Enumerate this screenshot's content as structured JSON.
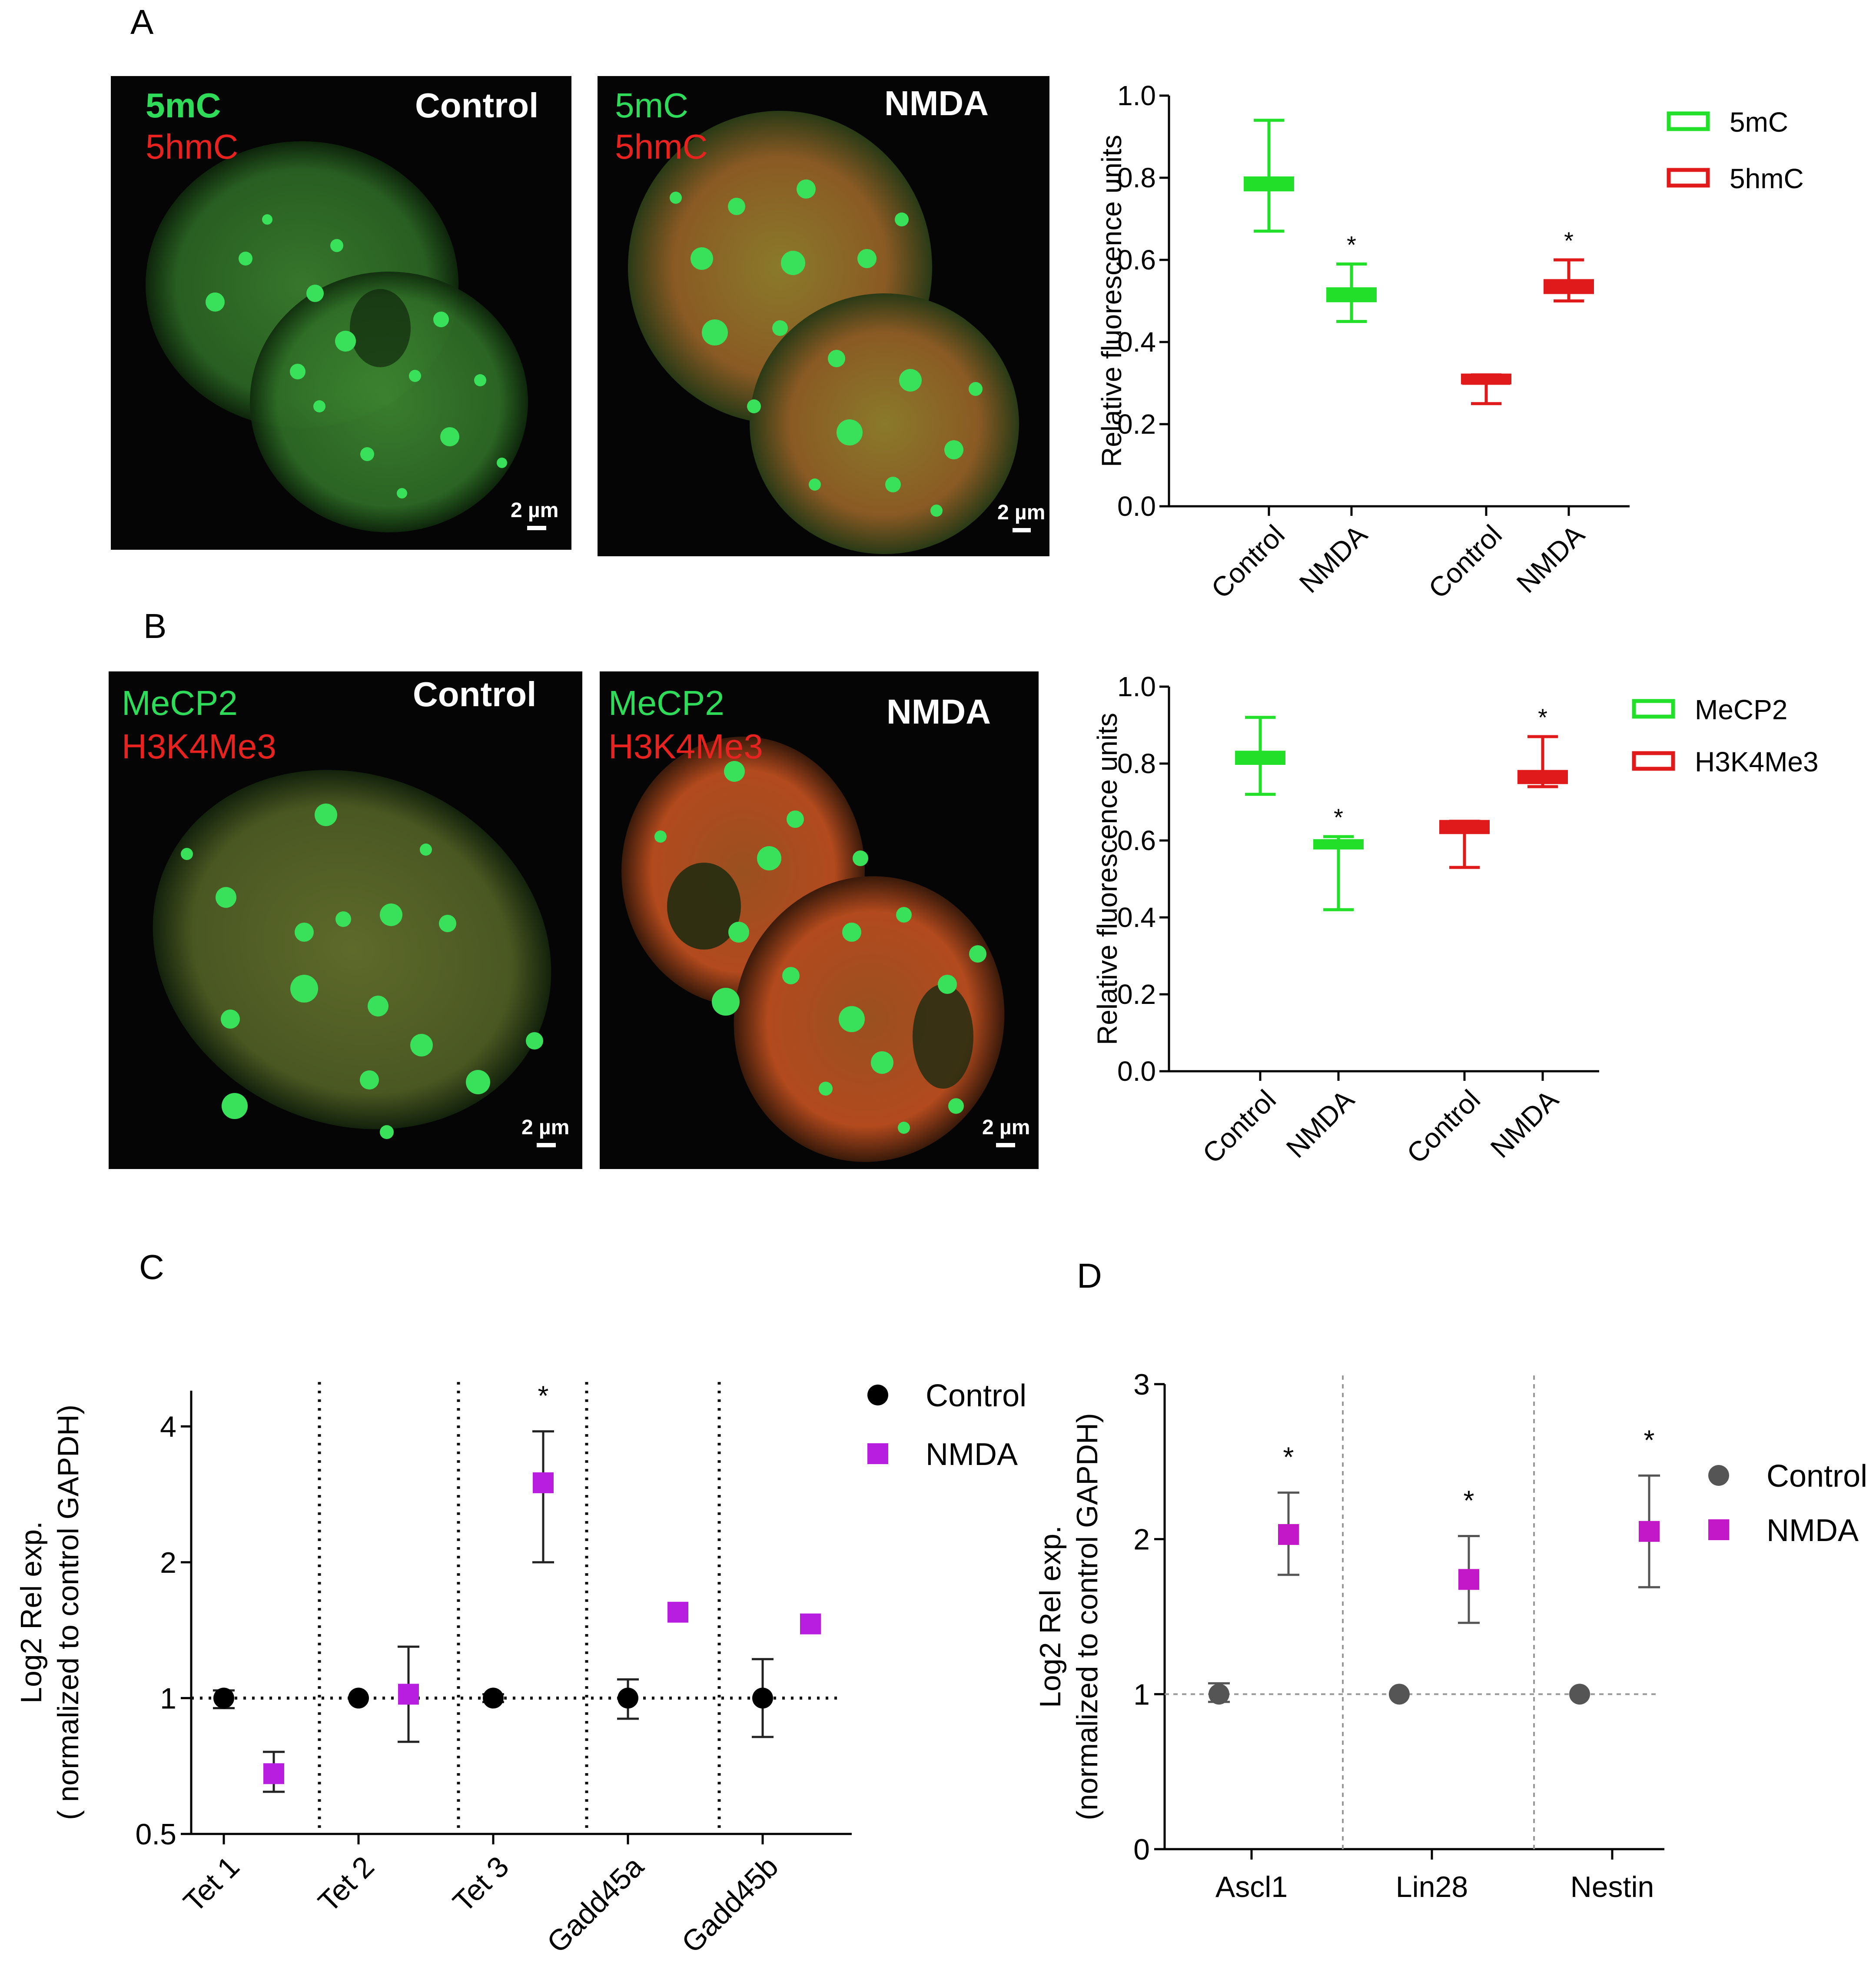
{
  "panels": {
    "A": "A",
    "B": "B",
    "C": "C",
    "D": "D"
  },
  "micrographs": [
    {
      "id": "A-control",
      "stain1": "5mC",
      "stain2": "5hmC",
      "stain1_color": "#2fdc5a",
      "stain2_color": "#e8221e",
      "condition": "Control",
      "scale_bar": "2 µm"
    },
    {
      "id": "A-nmda",
      "stain1": "5mC",
      "stain2": "5hmC",
      "stain1_color": "#2fdc5a",
      "stain2_color": "#e8221e",
      "condition": "NMDA",
      "scale_bar": "2 µm"
    },
    {
      "id": "B-control",
      "stain1": "MeCP2",
      "stain2": "H3K4Me3",
      "stain1_color": "#2fdc5a",
      "stain2_color": "#e8221e",
      "condition": "Control",
      "scale_bar": "2 µm"
    },
    {
      "id": "B-nmda",
      "stain1": "MeCP2",
      "stain2": "H3K4Me3",
      "stain1_color": "#2fdc5a",
      "stain2_color": "#e8221e",
      "condition": "NMDA",
      "scale_bar": "2 µm"
    }
  ],
  "chart_data": [
    {
      "id": "A-chart",
      "type": "box",
      "ylabel": "Relative fluorescence units",
      "ylim": [
        0,
        1.0
      ],
      "yticks": [
        "0.0",
        "0.2",
        "0.4",
        "0.6",
        "0.8",
        "1.0"
      ],
      "categories": [
        "Control",
        "NMDA",
        "Control",
        "NMDA"
      ],
      "legend": [
        {
          "name": "5mC",
          "color": "#22e02a"
        },
        {
          "name": "5hmC",
          "color": "#e01a1a"
        }
      ],
      "legend_position": "top-right",
      "series": [
        {
          "name": "5mC",
          "color": "#22e02a",
          "boxes": [
            {
              "category_index": 0,
              "min": 0.67,
              "q1": 0.77,
              "median": 0.78,
              "q3": 0.8,
              "max": 0.94,
              "significance": ""
            },
            {
              "category_index": 1,
              "min": 0.45,
              "q1": 0.5,
              "median": 0.51,
              "q3": 0.53,
              "max": 0.59,
              "significance": "*"
            }
          ]
        },
        {
          "name": "5hmC",
          "color": "#e01a1a",
          "boxes": [
            {
              "category_index": 2,
              "min": 0.25,
              "q1": 0.3,
              "median": 0.3,
              "q3": 0.32,
              "max": 0.32,
              "significance": ""
            },
            {
              "category_index": 3,
              "min": 0.5,
              "q1": 0.52,
              "median": 0.53,
              "q3": 0.55,
              "max": 0.6,
              "significance": "*"
            }
          ]
        }
      ]
    },
    {
      "id": "B-chart",
      "type": "box",
      "ylabel": "Relative fluorescence units",
      "ylim": [
        0,
        1.0
      ],
      "yticks": [
        "0.0",
        "0.2",
        "0.4",
        "0.6",
        "0.8",
        "1.0"
      ],
      "categories": [
        "Control",
        "NMDA",
        "Control",
        "NMDA"
      ],
      "legend": [
        {
          "name": "MeCP2",
          "color": "#22e02a"
        },
        {
          "name": "H3K4Me3",
          "color": "#e01a1a"
        }
      ],
      "legend_position": "top-right",
      "series": [
        {
          "name": "MeCP2",
          "color": "#22e02a",
          "boxes": [
            {
              "category_index": 0,
              "min": 0.72,
              "q1": 0.8,
              "median": 0.82,
              "q3": 0.83,
              "max": 0.92,
              "significance": ""
            },
            {
              "category_index": 1,
              "min": 0.42,
              "q1": 0.58,
              "median": 0.59,
              "q3": 0.6,
              "max": 0.61,
              "significance": "*"
            }
          ]
        },
        {
          "name": "H3K4Me3",
          "color": "#e01a1a",
          "boxes": [
            {
              "category_index": 2,
              "min": 0.53,
              "q1": 0.62,
              "median": 0.63,
              "q3": 0.65,
              "max": 0.65,
              "significance": ""
            },
            {
              "category_index": 3,
              "min": 0.74,
              "q1": 0.75,
              "median": 0.76,
              "q3": 0.78,
              "max": 0.87,
              "significance": "*"
            }
          ]
        }
      ]
    },
    {
      "id": "C-chart",
      "type": "scatter",
      "ylabel": "Log2 Rel exp.",
      "ylabel2": "( normalized to control GAPDH)",
      "yscale": "log2",
      "ylim": [
        0.5,
        4.8
      ],
      "yticks": [
        {
          "value": 0.5,
          "label": "0.5"
        },
        {
          "value": 1,
          "label": "1"
        },
        {
          "value": 2,
          "label": "2"
        },
        {
          "value": 4,
          "label": "4"
        }
      ],
      "categories": [
        "Tet 1",
        "Tet 2",
        "Tet 3",
        "Gadd45a",
        "Gadd45b"
      ],
      "reference_line": 1,
      "legend": [
        {
          "name": "Control",
          "color": "#000000",
          "marker": "circle"
        },
        {
          "name": "NMDA",
          "color": "#b81ee0",
          "marker": "square"
        }
      ],
      "legend_position": "top-right",
      "series": [
        {
          "name": "Control",
          "color": "#000000",
          "marker": "circle",
          "points": [
            {
              "category_index": 0,
              "y": 1.0,
              "err_low": 0.95,
              "err_high": 1.04
            },
            {
              "category_index": 1,
              "y": 1.0,
              "err_low": 1.0,
              "err_high": 1.0
            },
            {
              "category_index": 2,
              "y": 1.0,
              "err_low": 0.98,
              "err_high": 1.02
            },
            {
              "category_index": 3,
              "y": 1.0,
              "err_low": 0.9,
              "err_high": 1.1
            },
            {
              "category_index": 4,
              "y": 1.0,
              "err_low": 0.82,
              "err_high": 1.22
            }
          ]
        },
        {
          "name": "NMDA",
          "color": "#b81ee0",
          "marker": "square",
          "points": [
            {
              "category_index": 0,
              "y": 0.68,
              "err_low": 0.62,
              "err_high": 0.76,
              "significance": ""
            },
            {
              "category_index": 1,
              "y": 1.02,
              "err_low": 0.8,
              "err_high": 1.3,
              "significance": ""
            },
            {
              "category_index": 2,
              "y": 3.0,
              "err_low": 2.0,
              "err_high": 3.9,
              "significance": "*"
            },
            {
              "category_index": 3,
              "y": 1.55,
              "err_low": 1.55,
              "err_high": 1.55,
              "significance": ""
            },
            {
              "category_index": 4,
              "y": 1.46,
              "err_low": 1.46,
              "err_high": 1.46,
              "significance": ""
            }
          ]
        }
      ]
    },
    {
      "id": "D-chart",
      "type": "scatter",
      "ylabel": "Log2 Rel exp.",
      "ylabel2": "(normalized to control GAPDH)",
      "ylim": [
        0,
        3
      ],
      "yticks": [
        {
          "value": 0,
          "label": "0"
        },
        {
          "value": 1,
          "label": "1"
        },
        {
          "value": 2,
          "label": "2"
        },
        {
          "value": 3,
          "label": "3"
        }
      ],
      "categories": [
        "Ascl1",
        "Lin28",
        "Nestin"
      ],
      "reference_line": 1,
      "legend": [
        {
          "name": "Control",
          "color": "#555555",
          "marker": "circle"
        },
        {
          "name": "NMDA",
          "color": "#c218c8",
          "marker": "square"
        }
      ],
      "legend_position": "right",
      "series": [
        {
          "name": "Control",
          "color": "#555555",
          "marker": "circle",
          "points": [
            {
              "category_index": 0,
              "y": 1.0,
              "err_low": 0.95,
              "err_high": 1.07
            },
            {
              "category_index": 1,
              "y": 1.0,
              "err_low": 1.0,
              "err_high": 1.0
            },
            {
              "category_index": 2,
              "y": 1.0,
              "err_low": 1.0,
              "err_high": 1.0
            }
          ]
        },
        {
          "name": "NMDA",
          "color": "#c218c8",
          "marker": "square",
          "points": [
            {
              "category_index": 0,
              "y": 2.03,
              "err_low": 1.77,
              "err_high": 2.3,
              "significance": "*"
            },
            {
              "category_index": 1,
              "y": 1.74,
              "err_low": 1.46,
              "err_high": 2.02,
              "significance": "*"
            },
            {
              "category_index": 2,
              "y": 2.05,
              "err_low": 1.69,
              "err_high": 2.41,
              "significance": "*"
            }
          ]
        }
      ]
    }
  ]
}
